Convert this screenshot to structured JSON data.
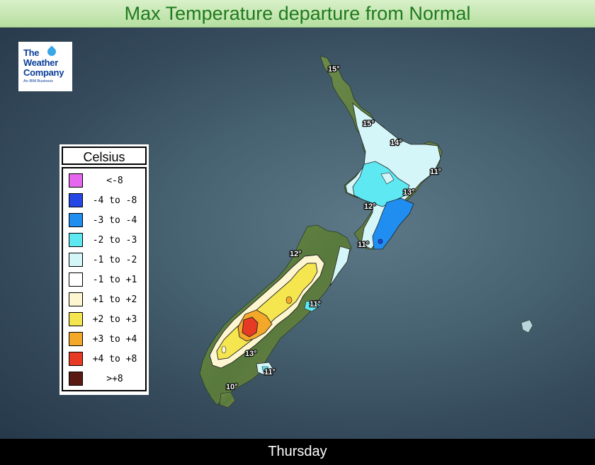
{
  "title": "Max Temperature departure from Normal",
  "day": "Thursday",
  "logo": {
    "line1": "The",
    "line2": "Weather",
    "line3": "Company",
    "sub": "An IBM Business"
  },
  "legend": {
    "title": "Celsius",
    "items": [
      {
        "label": "<-8",
        "color": "#e666ee"
      },
      {
        "label": "-4 to -8",
        "color": "#2447e6"
      },
      {
        "label": "-3 to -4",
        "color": "#1f8ef0"
      },
      {
        "label": "-2 to -3",
        "color": "#5ee8f2"
      },
      {
        "label": "-1 to -2",
        "color": "#d4f6f8"
      },
      {
        "label": "-1 to +1",
        "color": "#ffffff"
      },
      {
        "label": "+1 to +2",
        "color": "#fdf6d0"
      },
      {
        "label": "+2 to +3",
        "color": "#f5e650"
      },
      {
        "label": "+3 to +4",
        "color": "#f3a82a"
      },
      {
        "label": "+4 to +8",
        "color": "#e63a24"
      },
      {
        "label": ">+8",
        "color": "#5a1a12"
      }
    ]
  },
  "map_labels": [
    {
      "text": "15°"
    },
    {
      "text": "15°"
    },
    {
      "text": "14°"
    },
    {
      "text": "11°"
    },
    {
      "text": "13°"
    },
    {
      "text": "12°"
    },
    {
      "text": "11°"
    },
    {
      "text": "12°"
    },
    {
      "text": "11°"
    },
    {
      "text": "13°"
    },
    {
      "text": "11°"
    },
    {
      "text": "10°"
    }
  ]
}
